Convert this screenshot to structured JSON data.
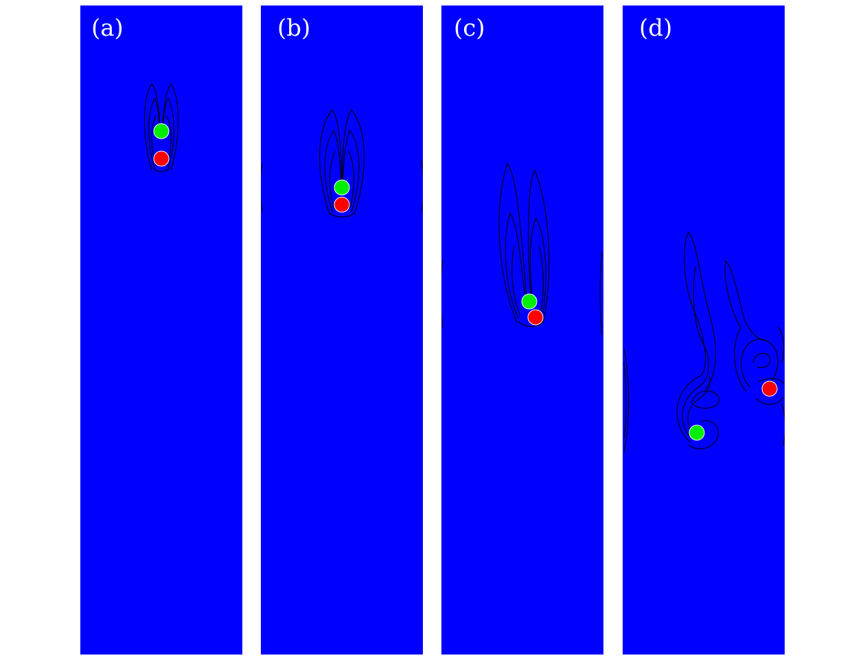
{
  "panels": [
    {
      "label": "(a)"
    },
    {
      "label": "(b)"
    },
    {
      "label": "(c)"
    },
    {
      "label": "(d)"
    }
  ],
  "colors": {
    "fluid_background": "#0000ff",
    "particle_upper": "#00ee00",
    "particle_lower": "#ff0000",
    "contour_lines": "#000000",
    "figure_background": "#ffffff"
  }
}
